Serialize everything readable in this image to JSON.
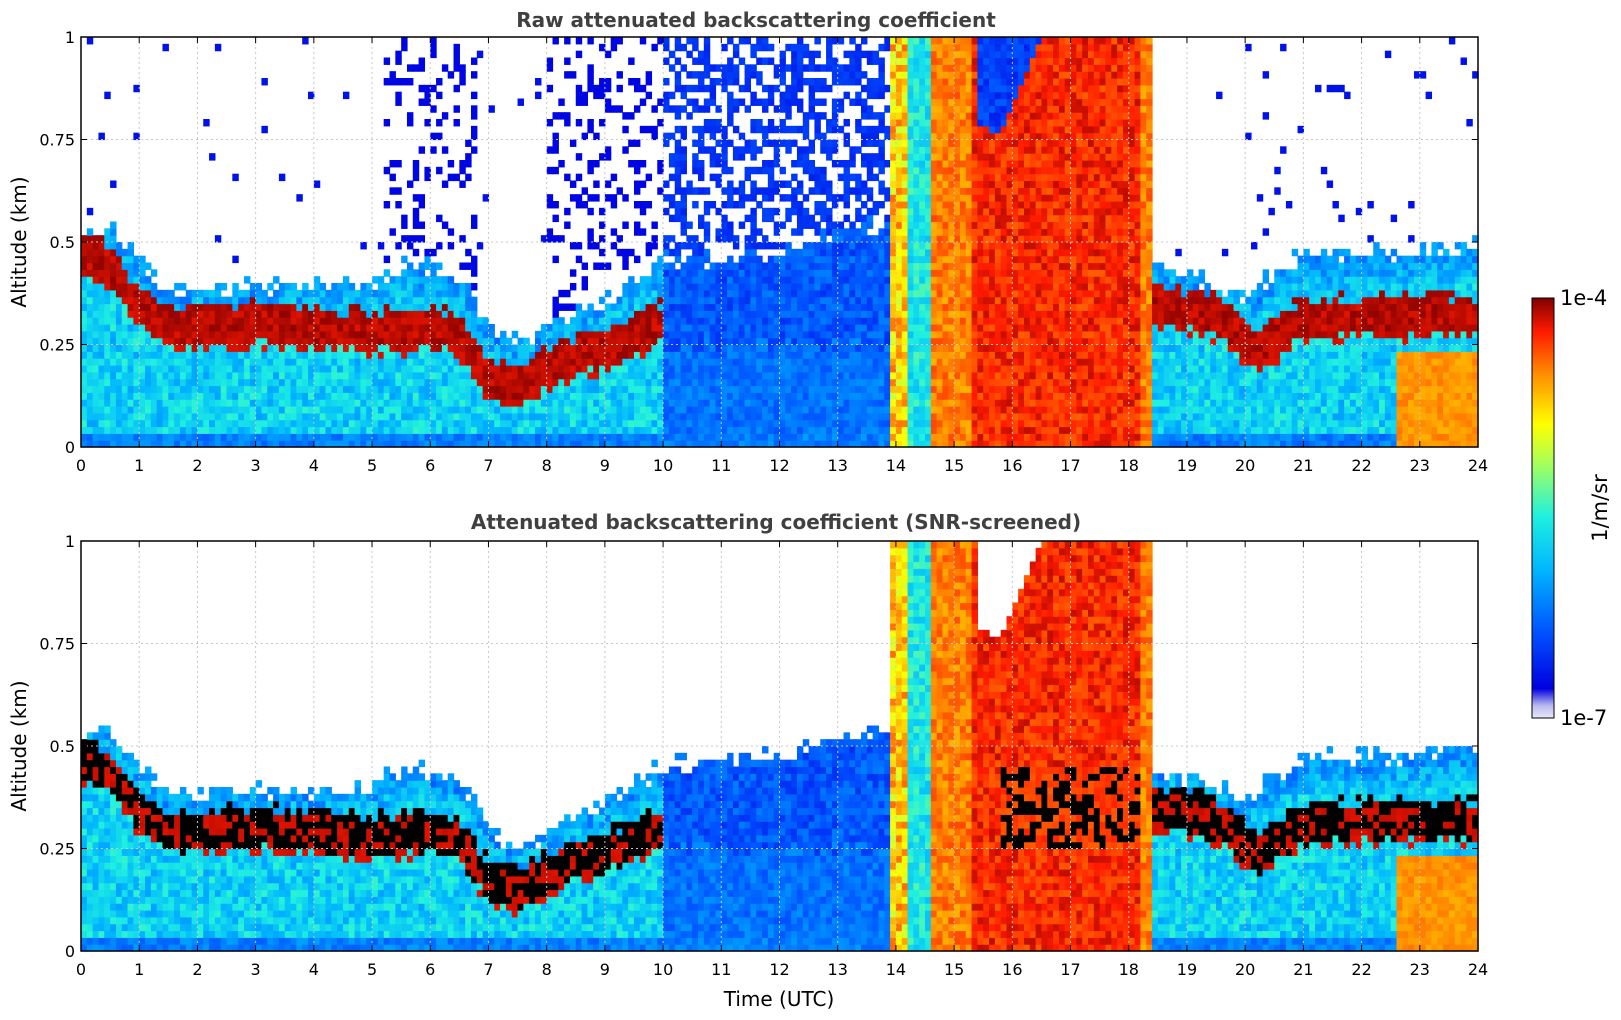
{
  "chart_data": [
    {
      "type": "heatmap",
      "title": "Raw attenuated backscattering coefficient",
      "xlabel": "",
      "ylabel": "Altitude (km)",
      "xlim": [
        0,
        24
      ],
      "ylim": [
        0,
        1
      ],
      "x_ticks": [
        "0",
        "1",
        "2",
        "3",
        "4",
        "5",
        "6",
        "7",
        "8",
        "9",
        "10",
        "11",
        "12",
        "13",
        "14",
        "15",
        "16",
        "17",
        "18",
        "19",
        "20",
        "21",
        "22",
        "23",
        "24"
      ],
      "y_ticks": [
        "0",
        "0.25",
        "0.5",
        "0.75",
        "1"
      ],
      "grid": true,
      "colorbar": {
        "min_label": "1e-7",
        "max_label": "1e-4",
        "label": "1/m/sr",
        "scale": "log"
      },
      "screened": false
    },
    {
      "type": "heatmap",
      "title": "Attenuated backscattering coefficient (SNR-screened)",
      "xlabel": "Time (UTC)",
      "ylabel": "Altitude (km)",
      "xlim": [
        0,
        24
      ],
      "ylim": [
        0,
        1
      ],
      "x_ticks": [
        "0",
        "1",
        "2",
        "3",
        "4",
        "5",
        "6",
        "7",
        "8",
        "9",
        "10",
        "11",
        "12",
        "13",
        "14",
        "15",
        "16",
        "17",
        "18",
        "19",
        "20",
        "21",
        "22",
        "23",
        "24"
      ],
      "y_ticks": [
        "0",
        "0.25",
        "0.5",
        "0.75",
        "1"
      ],
      "grid": true,
      "colorbar": {
        "min_label": "1e-7",
        "max_label": "1e-4",
        "label": "1/m/sr",
        "scale": "log"
      },
      "screened": true
    }
  ],
  "colorbar": {
    "top_label": "1e-4",
    "bottom_label": "1e-7",
    "unit": "1/m/sr"
  }
}
